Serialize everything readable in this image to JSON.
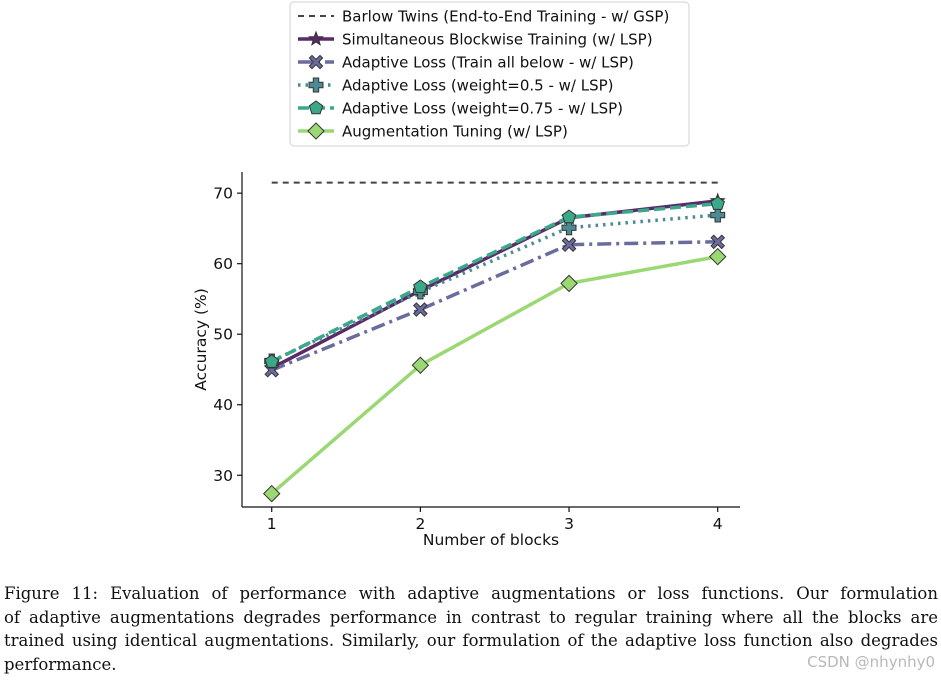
{
  "chart_data": {
    "type": "line",
    "xlabel": "Number of blocks",
    "ylabel": "Accuracy (%)",
    "x": [
      1,
      2,
      3,
      4
    ],
    "xticks": [
      "1",
      "2",
      "3",
      "4"
    ],
    "yticks": [
      "30",
      "40",
      "50",
      "60",
      "70"
    ],
    "ylim": [
      25.5,
      73
    ],
    "xlim": [
      0.8,
      4.15
    ],
    "grid": false,
    "legend_position": "top-center",
    "series": [
      {
        "name": "Barlow Twins (End-to-End Training - w/ GSP)",
        "values": [
          71.5,
          71.5,
          71.5,
          71.5
        ],
        "color": "#444444",
        "dash": "6,5",
        "marker": "none",
        "width": 2
      },
      {
        "name": "Simultaneous Blockwise Training (w/ LSP)",
        "values": [
          45.2,
          56.2,
          66.5,
          68.9
        ],
        "color": "#5a2a6b",
        "dash": "",
        "marker": "star",
        "width": 3.5
      },
      {
        "name": "Adaptive Loss (Train all below - w/ LSP)",
        "values": [
          44.9,
          53.5,
          62.7,
          63.1
        ],
        "color": "#6b6c9e",
        "dash": "14,5,3,5",
        "marker": "x",
        "width": 3.5
      },
      {
        "name": "Adaptive Loss (weight=0.5 - w/ LSP)",
        "values": [
          46.2,
          56.0,
          65.1,
          66.9
        ],
        "color": "#4c8a94",
        "dash": "2.5,5",
        "marker": "plus",
        "width": 3.5
      },
      {
        "name": "Adaptive Loss (weight=0.75 - w/ LSP)",
        "values": [
          46.1,
          56.7,
          66.6,
          68.5
        ],
        "color": "#3aa889",
        "dash": "11,5",
        "marker": "pentagon",
        "width": 3.5
      },
      {
        "name": "Augmentation Tuning (w/ LSP)",
        "values": [
          27.4,
          45.6,
          57.2,
          61.0
        ],
        "color": "#9bd874",
        "dash": "",
        "marker": "diamond",
        "width": 3.5
      }
    ]
  },
  "caption": {
    "lines": [
      "Figure 11: Evaluation of performance with adaptive augmentations or loss functions. Our formulation",
      "of adaptive augmentations degrades performance in contrast to regular training where all the blocks are",
      "trained using identical augmentations. Similarly, our formulation of the adaptive loss function also degrades",
      "performance."
    ]
  },
  "watermark": "CSDN @nhynhy0"
}
